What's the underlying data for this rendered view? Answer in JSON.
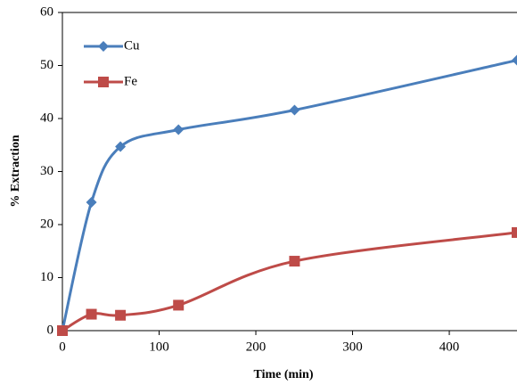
{
  "chart_data": {
    "type": "line",
    "x_label": "Time (min)",
    "y_label": "% Extraction",
    "x": [
      0,
      30,
      60,
      120,
      240,
      470
    ],
    "series": [
      {
        "name": "Cu",
        "color": "#4a7ebb",
        "marker": "diamond",
        "values": [
          0,
          24.2,
          34.7,
          37.9,
          41.6,
          51
        ]
      },
      {
        "name": "Fe",
        "color": "#be4b48",
        "marker": "square",
        "values": [
          0,
          3.1,
          2.9,
          4.8,
          13.1,
          18.5
        ]
      }
    ],
    "xlim": [
      0,
      470
    ],
    "xticks": [
      0,
      100,
      200,
      300,
      400
    ],
    "ylim": [
      0,
      60
    ],
    "yticks": [
      0,
      10,
      20,
      30,
      40,
      50,
      60
    ],
    "grid": false,
    "legend": "upper-left",
    "smooth": true
  }
}
